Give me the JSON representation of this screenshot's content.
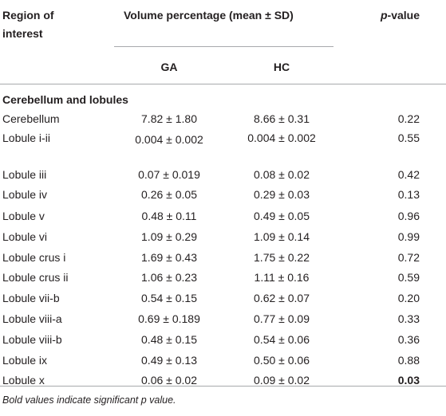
{
  "table": {
    "header": {
      "region_line1": "Region of",
      "region_line2": "interest",
      "volume": "Volume percentage (mean ± SD)",
      "pvalue_p": "p",
      "pvalue_rest": "-value",
      "ga": "GA",
      "hc": "HC"
    },
    "section": "Cerebellum and lobules",
    "rows": [
      {
        "region": "Cerebellum",
        "ga": "7.82 ± 1.80",
        "hc": "8.66 ± 0.31",
        "p": "0.22",
        "bold": false
      },
      {
        "region": "Lobule i-ii",
        "ga": "0.004 ± 0.002",
        "hc": "0.004 ± 0.002",
        "p": "0.55",
        "bold": false
      },
      {
        "region": "Lobule iii",
        "ga": "0.07 ± 0.019",
        "hc": "0.08 ± 0.02",
        "p": "0.42",
        "bold": false
      },
      {
        "region": "Lobule iv",
        "ga": "0.26 ± 0.05",
        "hc": "0.29 ± 0.03",
        "p": "0.13",
        "bold": false
      },
      {
        "region": "Lobule v",
        "ga": "0.48 ± 0.11",
        "hc": "0.49 ± 0.05",
        "p": "0.96",
        "bold": false
      },
      {
        "region": "Lobule vi",
        "ga": "1.09 ± 0.29",
        "hc": "1.09 ± 0.14",
        "p": "0.99",
        "bold": false
      },
      {
        "region": "Lobule crus i",
        "ga": "1.69 ± 0.43",
        "hc": "1.75 ± 0.22",
        "p": "0.72",
        "bold": false
      },
      {
        "region": "Lobule crus ii",
        "ga": "1.06 ± 0.23",
        "hc": "1.11 ± 0.16",
        "p": "0.59",
        "bold": false
      },
      {
        "region": "Lobule vii-b",
        "ga": "0.54 ± 0.15",
        "hc": "0.62 ± 0.07",
        "p": "0.20",
        "bold": false
      },
      {
        "region": "Lobule viii-a",
        "ga": "0.69 ± 0.189",
        "hc": "0.77 ± 0.09",
        "p": "0.33",
        "bold": false
      },
      {
        "region": "Lobule viii-b",
        "ga": "0.48 ± 0.15",
        "hc": "0.54 ± 0.06",
        "p": "0.36",
        "bold": false
      },
      {
        "region": "Lobule ix",
        "ga": "0.49 ± 0.13",
        "hc": "0.50 ± 0.06",
        "p": "0.88",
        "bold": false
      },
      {
        "region": "Lobule x",
        "ga": "0.06 ± 0.02",
        "hc": "0.09 ± 0.02",
        "p": "0.03",
        "bold": true
      }
    ],
    "footnote": "Bold values indicate significant p value."
  }
}
